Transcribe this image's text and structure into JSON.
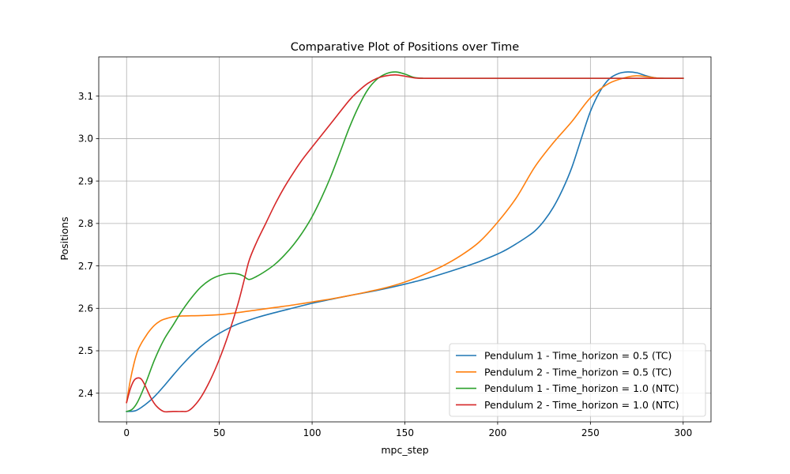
{
  "chart_data": {
    "type": "line",
    "title": "Comparative Plot of Positions over Time",
    "xlabel": "mpc_step",
    "ylabel": "Positions",
    "xlim": [
      -15,
      315
    ],
    "ylim": [
      2.3325,
      3.1925
    ],
    "xticks": [
      0,
      50,
      100,
      150,
      200,
      250,
      300
    ],
    "yticks": [
      2.4,
      2.5,
      2.6,
      2.7,
      2.8,
      2.9,
      3.0,
      3.1
    ],
    "ytick_labels": [
      "2.4",
      "2.5",
      "2.6",
      "2.7",
      "2.8",
      "2.9",
      "3.0",
      "3.1"
    ],
    "grid": true,
    "legend_position": "lower-right",
    "series": [
      {
        "name": "Pendulum 1 - Time_horizon = 0.5 (TC)",
        "color": "#1f77b4",
        "x": [
          0,
          5,
          10,
          15,
          20,
          25,
          30,
          35,
          40,
          45,
          50,
          55,
          60,
          70,
          80,
          90,
          100,
          110,
          120,
          130,
          140,
          150,
          160,
          170,
          180,
          190,
          200,
          205,
          210,
          215,
          220,
          225,
          230,
          235,
          240,
          245,
          250,
          255,
          260,
          265,
          270,
          275,
          280,
          285,
          290,
          300
        ],
        "y": [
          2.357,
          2.359,
          2.373,
          2.392,
          2.416,
          2.442,
          2.467,
          2.49,
          2.51,
          2.527,
          2.541,
          2.553,
          2.563,
          2.578,
          2.59,
          2.601,
          2.612,
          2.621,
          2.63,
          2.638,
          2.647,
          2.657,
          2.668,
          2.681,
          2.695,
          2.71,
          2.728,
          2.739,
          2.752,
          2.766,
          2.782,
          2.806,
          2.838,
          2.88,
          2.932,
          2.999,
          3.064,
          3.11,
          3.14,
          3.153,
          3.157,
          3.155,
          3.148,
          3.143,
          3.142,
          3.142
        ]
      },
      {
        "name": "Pendulum 2 - Time_horizon = 0.5 (TC)",
        "color": "#ff7f0e",
        "x": [
          0,
          2,
          4,
          6,
          8,
          10,
          12,
          15,
          18,
          20,
          25,
          30,
          40,
          50,
          60,
          70,
          80,
          90,
          100,
          110,
          120,
          130,
          140,
          150,
          160,
          170,
          180,
          190,
          200,
          210,
          220,
          230,
          240,
          250,
          260,
          270,
          275,
          280,
          285,
          290,
          300
        ],
        "y": [
          2.378,
          2.43,
          2.47,
          2.5,
          2.518,
          2.532,
          2.545,
          2.56,
          2.57,
          2.574,
          2.58,
          2.582,
          2.583,
          2.585,
          2.59,
          2.596,
          2.602,
          2.608,
          2.615,
          2.622,
          2.63,
          2.639,
          2.649,
          2.662,
          2.679,
          2.699,
          2.724,
          2.756,
          2.803,
          2.86,
          2.933,
          2.99,
          3.04,
          3.096,
          3.13,
          3.145,
          3.148,
          3.146,
          3.143,
          3.142,
          3.142
        ]
      },
      {
        "name": "Pendulum 1 - Time_horizon = 1.0 (NTC)",
        "color": "#2ca02c",
        "x": [
          0,
          3,
          6,
          10,
          15,
          20,
          25,
          30,
          35,
          40,
          45,
          50,
          55,
          60,
          63,
          66,
          70,
          75,
          80,
          85,
          90,
          95,
          100,
          105,
          110,
          115,
          120,
          125,
          130,
          135,
          140,
          145,
          150,
          155,
          160,
          170,
          180,
          200,
          250,
          300
        ],
        "y": [
          2.357,
          2.362,
          2.38,
          2.42,
          2.478,
          2.525,
          2.56,
          2.595,
          2.625,
          2.65,
          2.667,
          2.677,
          2.682,
          2.681,
          2.676,
          2.668,
          2.675,
          2.688,
          2.704,
          2.725,
          2.75,
          2.78,
          2.816,
          2.86,
          2.91,
          2.967,
          3.025,
          3.075,
          3.115,
          3.14,
          3.153,
          3.157,
          3.152,
          3.144,
          3.142,
          3.142,
          3.142,
          3.142,
          3.142,
          3.142
        ]
      },
      {
        "name": "Pendulum 2 - Time_horizon = 1.0 (NTC)",
        "color": "#d62728",
        "x": [
          0,
          2,
          4,
          6,
          8,
          10,
          13,
          16,
          20,
          25,
          30,
          33,
          36,
          40,
          45,
          50,
          55,
          60,
          63,
          66,
          70,
          75,
          80,
          85,
          90,
          95,
          100,
          110,
          120,
          125,
          130,
          135,
          140,
          145,
          150,
          155,
          160,
          170,
          200,
          250,
          300
        ],
        "y": [
          2.378,
          2.41,
          2.43,
          2.436,
          2.433,
          2.418,
          2.39,
          2.37,
          2.357,
          2.357,
          2.357,
          2.358,
          2.368,
          2.39,
          2.43,
          2.48,
          2.54,
          2.61,
          2.66,
          2.712,
          2.755,
          2.8,
          2.845,
          2.885,
          2.92,
          2.952,
          2.98,
          3.035,
          3.09,
          3.112,
          3.13,
          3.142,
          3.148,
          3.15,
          3.147,
          3.143,
          3.142,
          3.142,
          3.142,
          3.142,
          3.142
        ]
      }
    ]
  }
}
